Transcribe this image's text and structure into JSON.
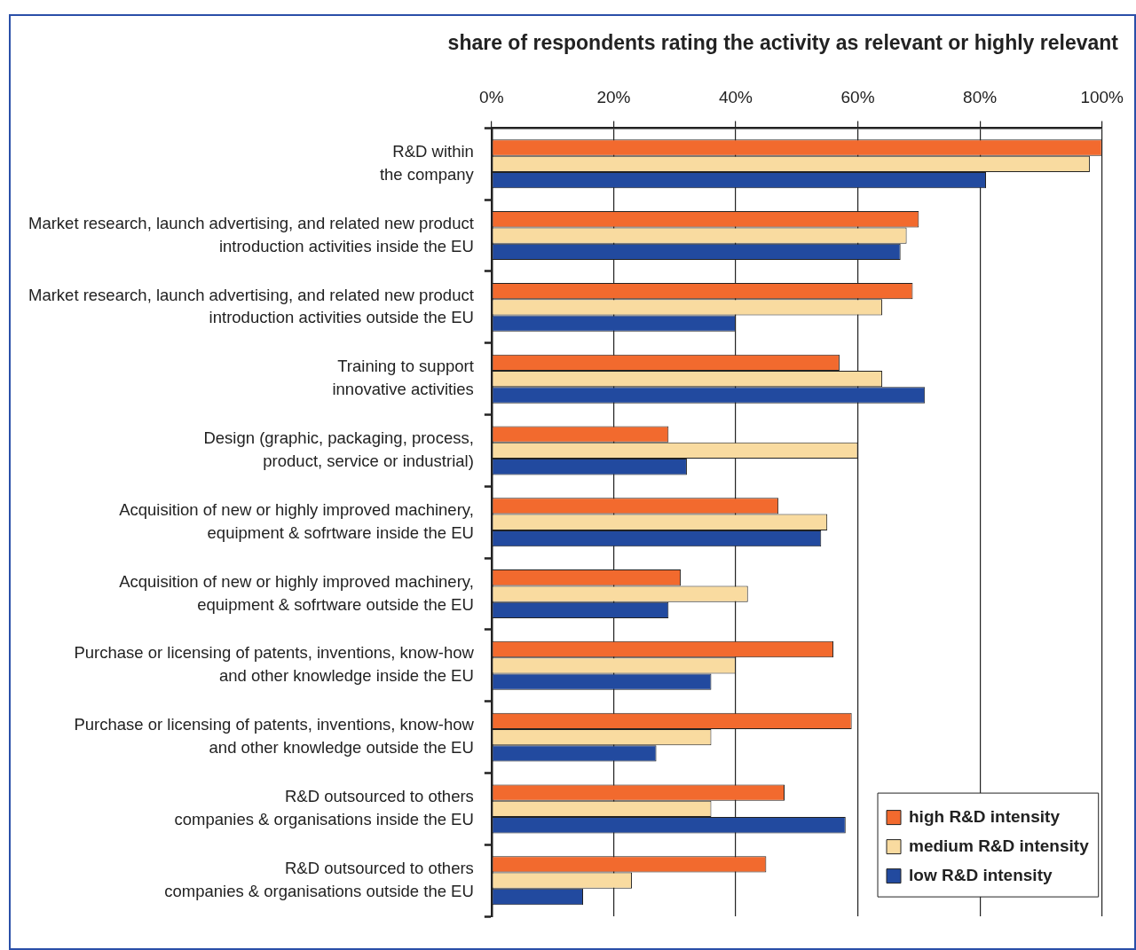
{
  "chart_data": {
    "type": "bar",
    "orientation": "horizontal",
    "title": "share of respondents rating the activity as relevant or highly relevant",
    "categories": [
      "R&D within\nthe company",
      "Market research, launch advertising, and related new product\nintroduction activities inside the EU",
      "Market research, launch advertising, and related new product\nintroduction activities outside the EU",
      "Training to support\ninnovative activities",
      "Design (graphic, packaging, process,\nproduct, service or industrial)",
      "Acquisition of new or highly improved machinery,\nequipment & sofrtware inside the EU",
      "Acquisition of new or highly improved machinery,\nequipment & sofrtware outside the EU",
      "Purchase or licensing of patents, inventions, know-how\nand other knowledge inside the EU",
      "Purchase or licensing of patents, inventions, know-how\nand other knowledge outside the EU",
      "R&D outsourced to others\ncompanies & organisations inside the EU",
      "R&D outsourced to others\ncompanies & organisations outside the EU"
    ],
    "series": [
      {
        "name": "high R&D intensity",
        "color": "#f26a2e",
        "values": [
          100,
          70,
          69,
          57,
          29,
          47,
          31,
          56,
          59,
          48,
          45
        ]
      },
      {
        "name": "medium R&D intensity",
        "color": "#f9dba0",
        "values": [
          98,
          68,
          64,
          64,
          60,
          55,
          42,
          40,
          36,
          36,
          23
        ]
      },
      {
        "name": "low R&D intensity",
        "color": "#224a9f",
        "values": [
          81,
          67,
          40,
          71,
          32,
          54,
          29,
          36,
          27,
          58,
          15
        ]
      }
    ],
    "xlim": [
      0,
      100
    ],
    "xticks": [
      {
        "value": 0,
        "label": "0%"
      },
      {
        "value": 20,
        "label": "20%"
      },
      {
        "value": 40,
        "label": "40%"
      },
      {
        "value": 60,
        "label": "60%"
      },
      {
        "value": 80,
        "label": "80%"
      },
      {
        "value": 100,
        "label": "100%"
      }
    ],
    "grid": "x",
    "legend": "bottom right"
  }
}
